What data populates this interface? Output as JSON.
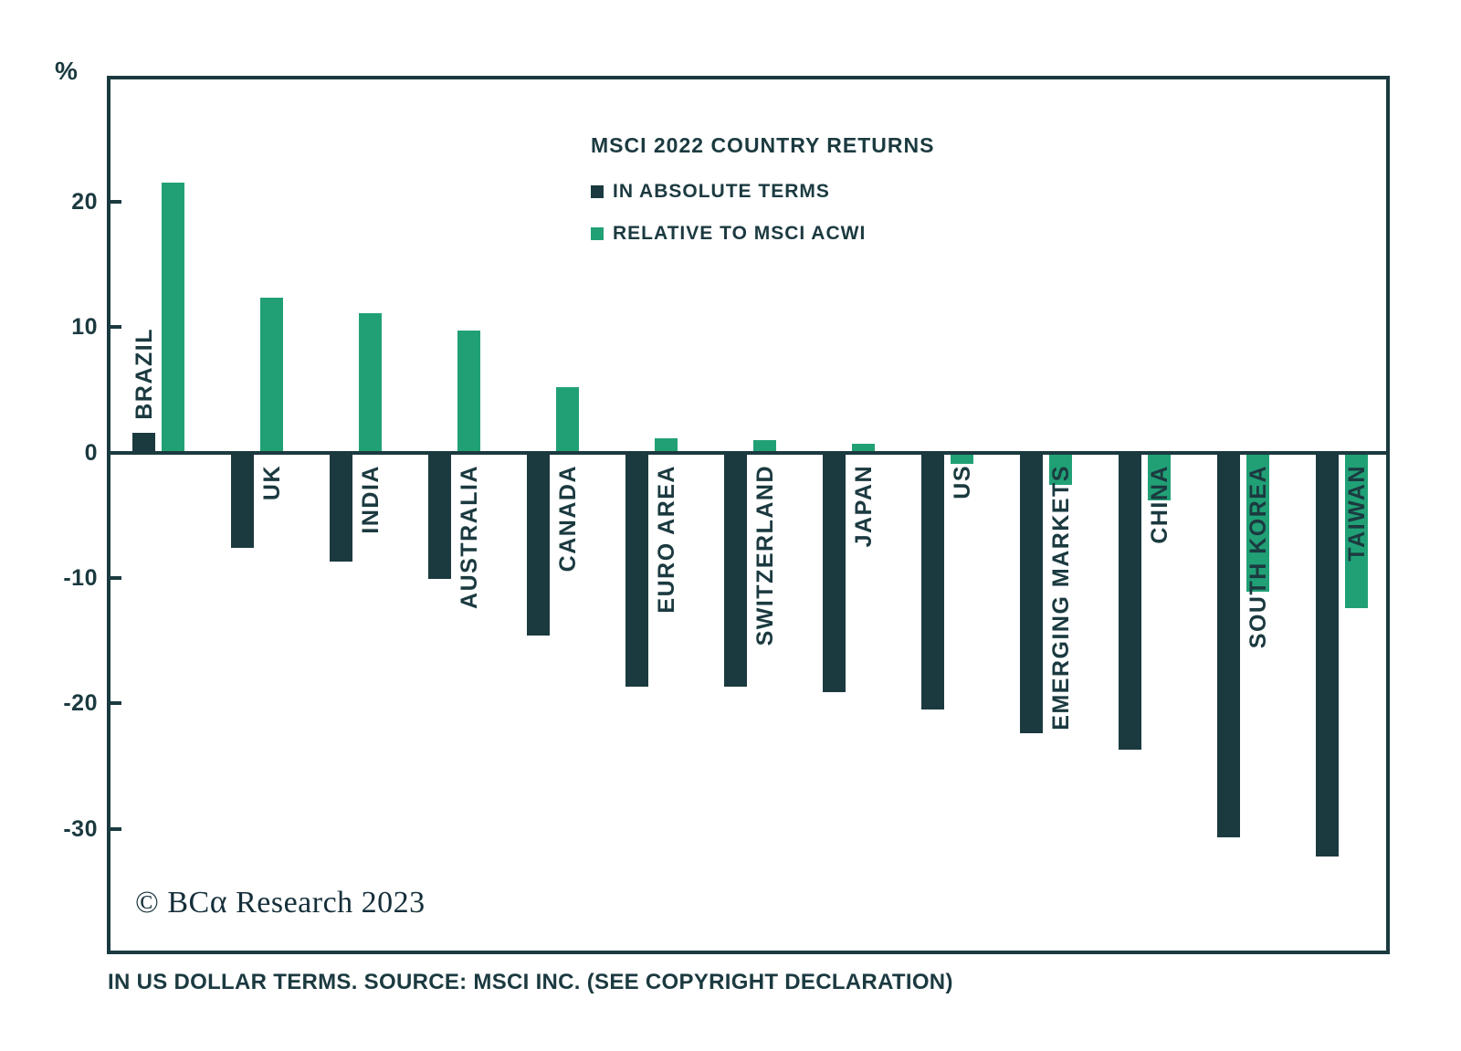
{
  "page": {
    "background": "#ffffff"
  },
  "axis": {
    "unit_symbol": "%"
  },
  "chart": {
    "title": "MSCI 2022 COUNTRY RETURNS",
    "legend": [
      {
        "label": "IN ABSOLUTE TERMS",
        "color": "#1b3a40"
      },
      {
        "label": "RELATIVE TO MSCI ACWI",
        "color": "#21a076"
      }
    ],
    "copyright_prefix": "© BC",
    "copyright_alpha": "α",
    "copyright_suffix": " Research 2023",
    "footnote": "IN US DOLLAR TERMS. SOURCE: MSCI INC. (SEE COPYRIGHT DECLARATION)"
  },
  "chart_data": {
    "type": "bar",
    "title": "MSCI 2022 COUNTRY RETURNS",
    "unit": "%",
    "categories": [
      "BRAZIL",
      "UK",
      "INDIA",
      "AUSTRALIA",
      "CANADA",
      "EURO AREA",
      "SWITZERLAND",
      "JAPAN",
      "US",
      "EMERGING MARKETS",
      "CHINA",
      "SOUTH KOREA",
      "TAIWAN"
    ],
    "series": [
      {
        "name": "IN ABSOLUTE TERMS",
        "color": "#1b3a40",
        "values": [
          1.6,
          -7.6,
          -8.7,
          -10.1,
          -14.6,
          -18.7,
          -18.7,
          -19.1,
          -20.5,
          -22.4,
          -23.7,
          -30.7,
          -32.2
        ]
      },
      {
        "name": "RELATIVE TO MSCI ACWI",
        "color": "#21a076",
        "values": [
          21.5,
          12.3,
          11.1,
          9.7,
          5.2,
          1.1,
          1.0,
          0.7,
          -0.9,
          -2.6,
          -3.8,
          -11.1,
          -12.4
        ]
      }
    ],
    "xlabel": "",
    "ylabel": "%",
    "yticks": [
      20,
      10,
      0,
      -10,
      -20,
      -30
    ],
    "ylim": [
      -40,
      30
    ],
    "grid": false,
    "legend_position": "top-center-inside",
    "bar_orientation": "vertical"
  }
}
